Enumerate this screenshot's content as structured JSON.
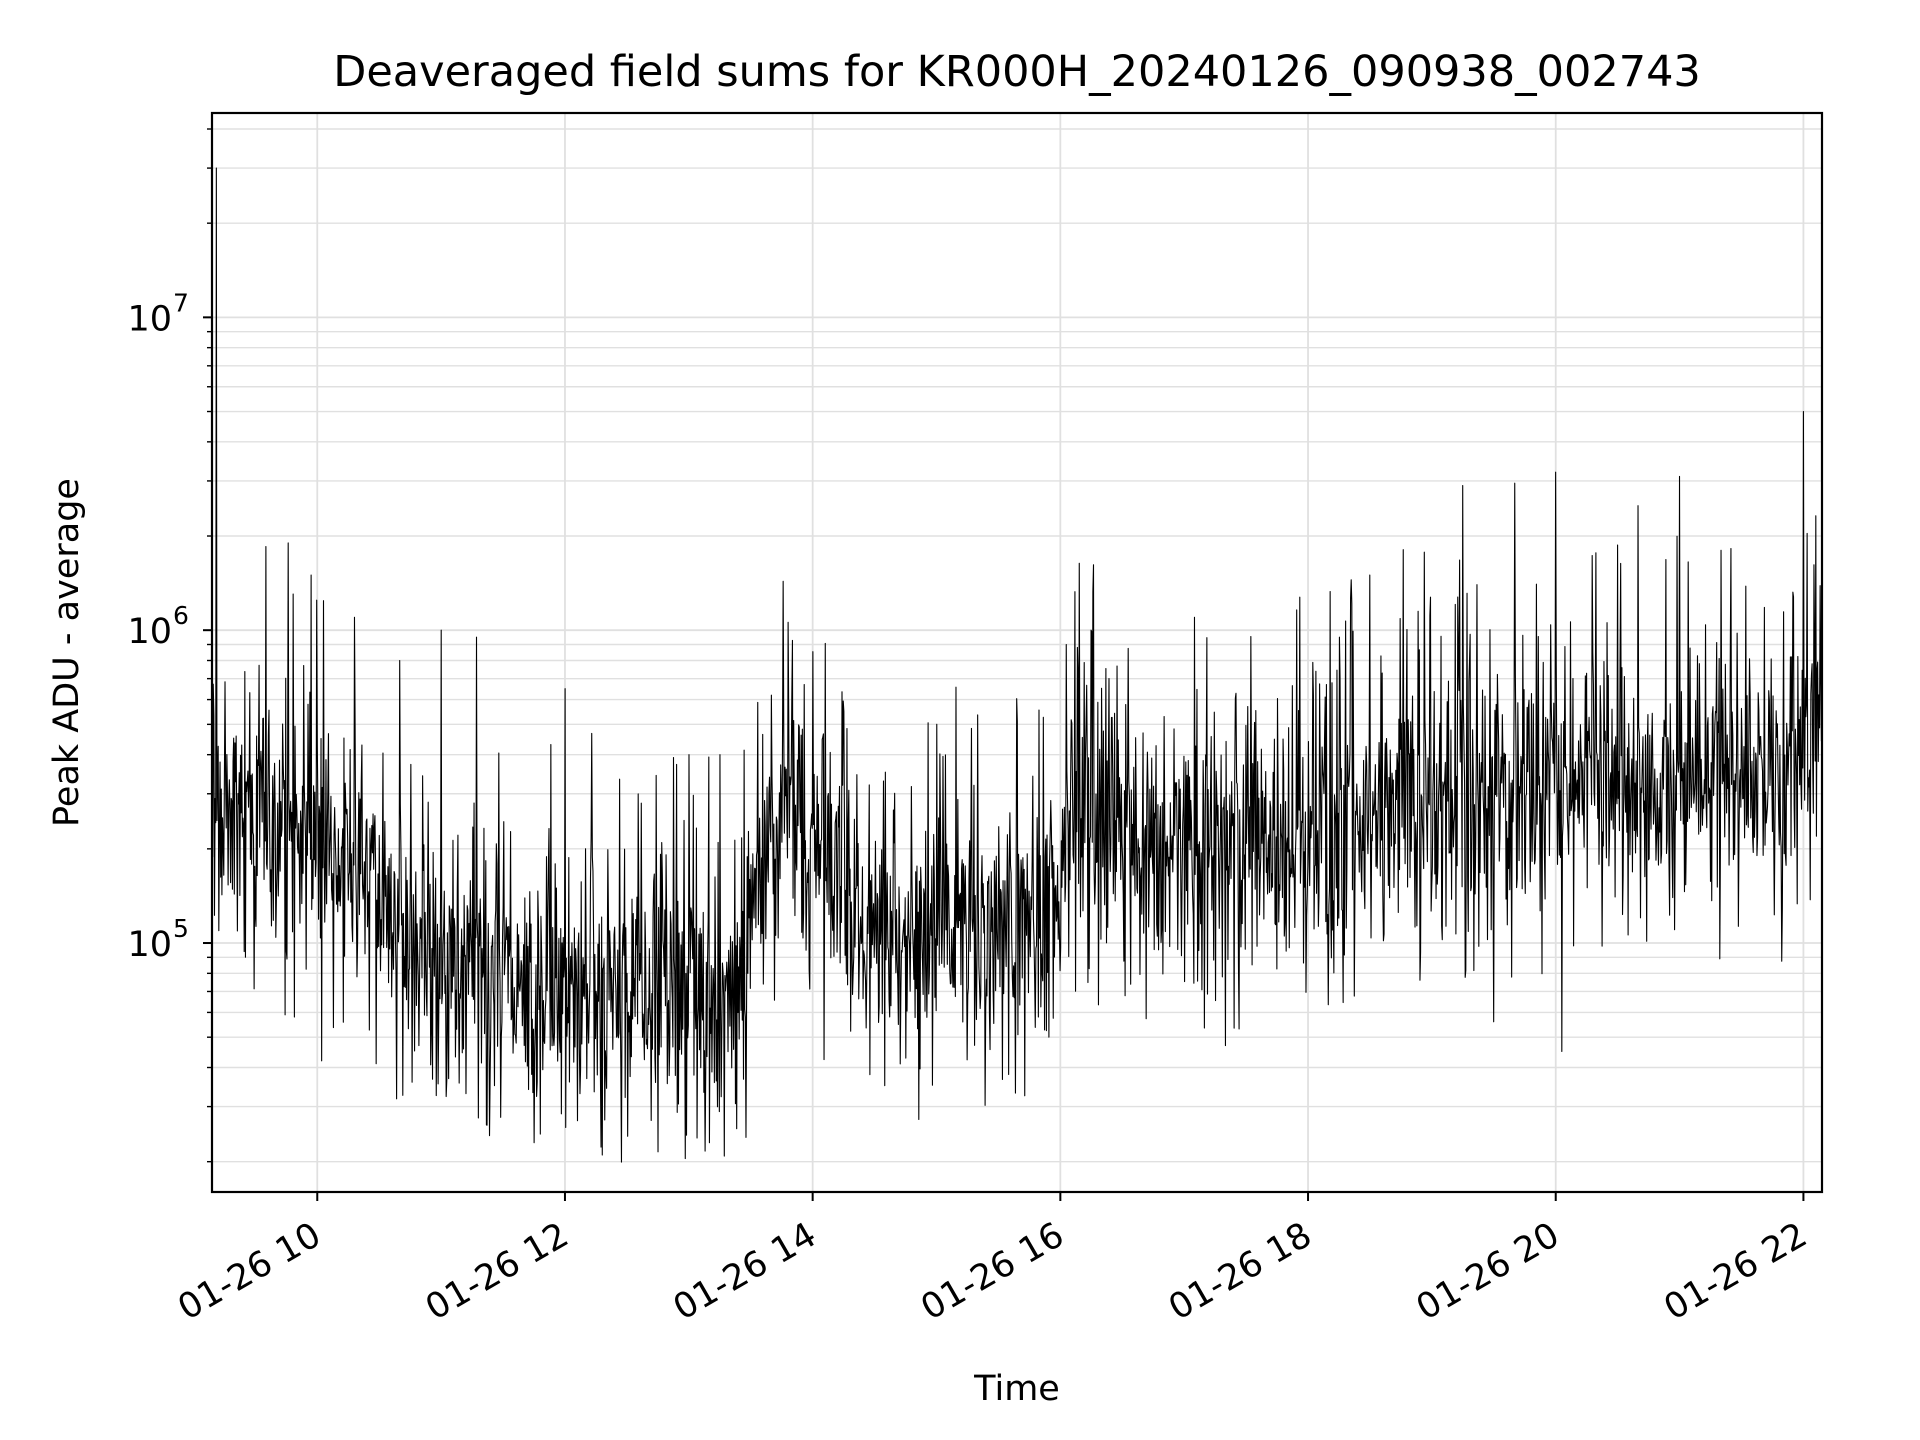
{
  "chart_data": {
    "type": "line",
    "title": "Deaveraged field sums for KR000H_20240126_090938_002743",
    "xlabel": "Time",
    "ylabel": "Peak ADU - average",
    "x_range": [
      "2024-01-26 09:09",
      "2024-01-26 22:09"
    ],
    "ylim": [
      16000,
      45000000
    ],
    "yscale": "log",
    "grid": true,
    "line_color": "#000000",
    "grid_color": "#e0e0e0",
    "x_ticks": [
      {
        "value": "2024-01-26 10:00",
        "label": "01-26 10"
      },
      {
        "value": "2024-01-26 12:00",
        "label": "01-26 12"
      },
      {
        "value": "2024-01-26 14:00",
        "label": "01-26 14"
      },
      {
        "value": "2024-01-26 16:00",
        "label": "01-26 16"
      },
      {
        "value": "2024-01-26 18:00",
        "label": "01-26 18"
      },
      {
        "value": "2024-01-26 20:00",
        "label": "01-26 20"
      },
      {
        "value": "2024-01-26 22:00",
        "label": "01-26 22"
      }
    ],
    "y_ticks": [
      {
        "value": 100000,
        "base": "10",
        "exp": "5"
      },
      {
        "value": 1000000,
        "base": "10",
        "exp": "6"
      },
      {
        "value": 10000000,
        "base": "10",
        "exp": "7"
      }
    ],
    "series": [
      {
        "time": [
          "09:09",
          "09:10",
          "09:20",
          "09:35",
          "09:45",
          "09:55",
          "10:00",
          "10:15",
          "10:30",
          "10:35",
          "10:40",
          "10:50",
          "11:00",
          "11:15",
          "11:30",
          "11:45",
          "12:00",
          "12:15",
          "12:30",
          "12:45",
          "13:00",
          "13:15",
          "13:30",
          "13:40",
          "13:50",
          "14:00",
          "14:15",
          "14:30",
          "14:45",
          "15:00",
          "15:15",
          "15:30",
          "15:45",
          "15:55",
          "16:05",
          "16:15",
          "16:30",
          "16:45",
          "17:00",
          "17:15",
          "17:30",
          "17:45",
          "18:00",
          "18:15",
          "18:30",
          "18:45",
          "19:00",
          "19:15",
          "19:30",
          "19:45",
          "20:00",
          "20:15",
          "20:30",
          "20:45",
          "21:00",
          "21:15",
          "21:30",
          "21:45",
          "22:00",
          "22:09"
        ],
        "baseline": [
          280000,
          300000,
          300000,
          260000,
          240000,
          220000,
          210000,
          200000,
          180000,
          110000,
          110000,
          100000,
          95000,
          85000,
          75000,
          70000,
          72000,
          75000,
          80000,
          78000,
          75000,
          72000,
          100000,
          250000,
          250000,
          170000,
          140000,
          120000,
          110000,
          105000,
          110000,
          115000,
          115000,
          140000,
          260000,
          260000,
          220000,
          200000,
          200000,
          210000,
          210000,
          220000,
          230000,
          240000,
          280000,
          290000,
          280000,
          300000,
          310000,
          300000,
          330000,
          330000,
          320000,
          300000,
          330000,
          340000,
          360000,
          330000,
          400000,
          480000
        ],
        "peaks": [
          {
            "t": "09:11",
            "v": 30000000
          },
          {
            "t": "09:35",
            "v": 1850000
          },
          {
            "t": "09:46",
            "v": 1900000
          },
          {
            "t": "09:57",
            "v": 1500000
          },
          {
            "t": "10:18",
            "v": 1100000
          },
          {
            "t": "10:40",
            "v": 800000
          },
          {
            "t": "11:00",
            "v": 1000000
          },
          {
            "t": "11:17",
            "v": 950000
          },
          {
            "t": "12:00",
            "v": 650000
          },
          {
            "t": "12:37",
            "v": 280000
          },
          {
            "t": "13:00",
            "v": 400000
          },
          {
            "t": "13:15",
            "v": 400000
          },
          {
            "t": "13:40",
            "v": 620000
          },
          {
            "t": "14:15",
            "v": 550000
          },
          {
            "t": "15:00",
            "v": 500000
          },
          {
            "t": "16:03",
            "v": 900000
          },
          {
            "t": "16:15",
            "v": 1000000
          },
          {
            "t": "17:05",
            "v": 1100000
          },
          {
            "t": "18:30",
            "v": 1500000
          },
          {
            "t": "19:15",
            "v": 2900000
          },
          {
            "t": "19:40",
            "v": 2950000
          },
          {
            "t": "20:00",
            "v": 3200000
          },
          {
            "t": "20:40",
            "v": 2500000
          },
          {
            "t": "21:00",
            "v": 3100000
          },
          {
            "t": "21:20",
            "v": 1800000
          },
          {
            "t": "22:00",
            "v": 5000000
          }
        ],
        "dips": [
          {
            "t": "09:49",
            "v": 58000
          },
          {
            "t": "10:02",
            "v": 42000
          },
          {
            "t": "11:12",
            "v": 33000
          },
          {
            "t": "11:45",
            "v": 23000
          },
          {
            "t": "12:18",
            "v": 21000
          },
          {
            "t": "12:45",
            "v": 21500
          },
          {
            "t": "13:10",
            "v": 23000
          },
          {
            "t": "14:35",
            "v": 35000
          },
          {
            "t": "15:35",
            "v": 38000
          },
          {
            "t": "17:20",
            "v": 47000
          },
          {
            "t": "19:30",
            "v": 56000
          },
          {
            "t": "20:03",
            "v": 45000
          }
        ]
      }
    ]
  }
}
